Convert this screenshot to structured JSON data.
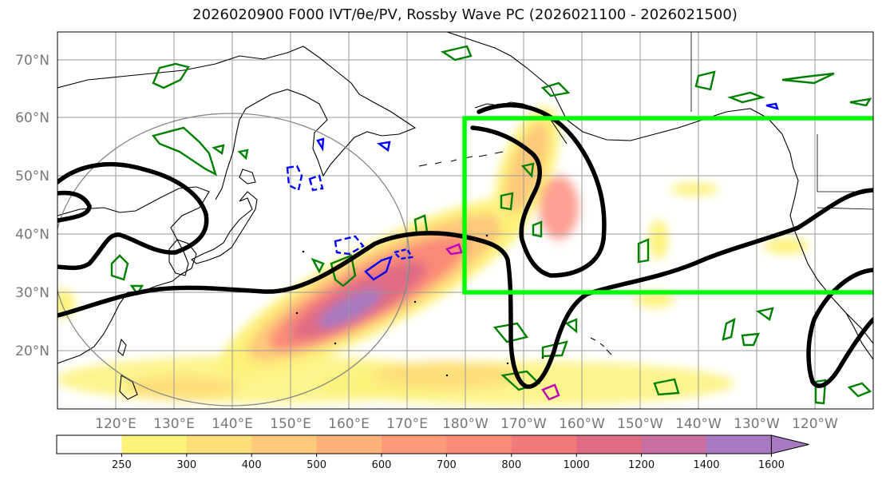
{
  "map": {
    "title": "2026020900 F000 IVT/θe/PV, Rossby Wave PC (2026021100 - 2026021500)",
    "lat_labels": [
      "70°N",
      "60°N",
      "50°N",
      "40°N",
      "30°N",
      "20°N"
    ],
    "lon_labels": [
      "120°E",
      "130°E",
      "140°E",
      "150°E",
      "160°E",
      "170°E",
      "180°W",
      "170°W",
      "160°W",
      "150°W",
      "140°W",
      "130°W",
      "120°W"
    ],
    "colorbar": {
      "tick_labels": [
        "250",
        "300",
        "400",
        "500",
        "600",
        "700",
        "800",
        "1000",
        "1200",
        "1400",
        "1600"
      ],
      "colors": [
        "#ffffff",
        "#fdf27a",
        "#fddf7a",
        "#fdc97a",
        "#fdb27a",
        "#fd9a78",
        "#fb8a78",
        "#f27a7a",
        "#e06c84",
        "#c770a0",
        "#a679c0",
        "#a679c0"
      ],
      "extend": "max"
    },
    "overlays": {
      "box_color": "#00ff00",
      "trough_color": "#000000",
      "theta_contour_color": "#008000",
      "pv_color": "#0000ff",
      "circle_color": "#888888"
    }
  }
}
